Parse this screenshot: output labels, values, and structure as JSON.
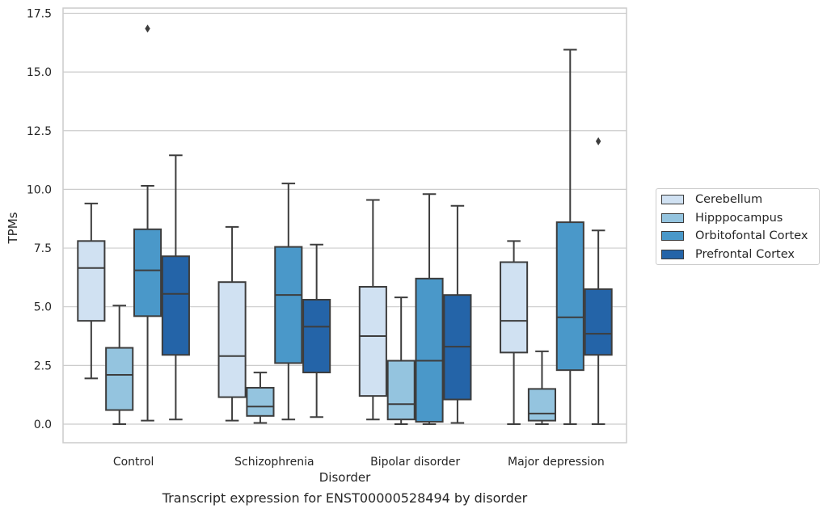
{
  "chart_data": {
    "type": "boxplot",
    "title": "Transcript expression for ENST00000528494 by disorder",
    "xlabel": "Disorder",
    "ylabel": "TPMs",
    "ylim": [
      -0.8,
      17.6
    ],
    "yticks": [
      "0.0",
      "2.5",
      "5.0",
      "7.5",
      "10.0",
      "12.5",
      "15.0",
      "17.5"
    ],
    "grid": "horizontal",
    "legend_position": "right",
    "categories": [
      "Control",
      "Schizophrenia",
      "Bipolar disorder",
      "Major depression"
    ],
    "series": [
      {
        "name": "Cerebellum",
        "color": "#d0e1f2",
        "boxes": [
          {
            "whislo": 1.95,
            "q1": 4.4,
            "med": 6.65,
            "q3": 7.8,
            "whishi": 9.4,
            "fliers": []
          },
          {
            "whislo": 0.15,
            "q1": 1.15,
            "med": 2.9,
            "q3": 6.05,
            "whishi": 8.4,
            "fliers": []
          },
          {
            "whislo": 0.2,
            "q1": 1.2,
            "med": 3.75,
            "q3": 5.85,
            "whishi": 9.55,
            "fliers": []
          },
          {
            "whislo": 0.0,
            "q1": 3.05,
            "med": 4.4,
            "q3": 6.9,
            "whishi": 7.8,
            "fliers": []
          }
        ]
      },
      {
        "name": "Hipppocampus",
        "color": "#94c4df",
        "boxes": [
          {
            "whislo": 0.0,
            "q1": 0.6,
            "med": 2.1,
            "q3": 3.25,
            "whishi": 5.05,
            "fliers": []
          },
          {
            "whislo": 0.05,
            "q1": 0.35,
            "med": 0.75,
            "q3": 1.55,
            "whishi": 2.2,
            "fliers": []
          },
          {
            "whislo": 0.0,
            "q1": 0.2,
            "med": 0.85,
            "q3": 2.7,
            "whishi": 5.4,
            "fliers": []
          },
          {
            "whislo": 0.0,
            "q1": 0.15,
            "med": 0.45,
            "q3": 1.5,
            "whishi": 3.1,
            "fliers": []
          }
        ]
      },
      {
        "name": "Orbitofontal Cortex",
        "color": "#4a98c9",
        "boxes": [
          {
            "whislo": 0.15,
            "q1": 4.6,
            "med": 6.55,
            "q3": 8.3,
            "whishi": 10.15,
            "fliers": [
              16.85
            ]
          },
          {
            "whislo": 0.2,
            "q1": 2.6,
            "med": 5.5,
            "q3": 7.55,
            "whishi": 10.25,
            "fliers": []
          },
          {
            "whislo": 0.0,
            "q1": 0.1,
            "med": 2.7,
            "q3": 6.2,
            "whishi": 9.8,
            "fliers": []
          },
          {
            "whislo": 0.0,
            "q1": 2.3,
            "med": 4.55,
            "q3": 8.6,
            "whishi": 15.95,
            "fliers": []
          }
        ]
      },
      {
        "name": "Prefrontal Cortex",
        "color": "#2464a8",
        "boxes": [
          {
            "whislo": 0.2,
            "q1": 2.95,
            "med": 5.55,
            "q3": 7.15,
            "whishi": 11.45,
            "fliers": []
          },
          {
            "whislo": 0.3,
            "q1": 2.2,
            "med": 4.15,
            "q3": 5.3,
            "whishi": 7.65,
            "fliers": []
          },
          {
            "whislo": 0.05,
            "q1": 1.05,
            "med": 3.3,
            "q3": 5.5,
            "whishi": 9.3,
            "fliers": []
          },
          {
            "whislo": 0.0,
            "q1": 2.95,
            "med": 3.85,
            "q3": 5.75,
            "whishi": 8.25,
            "fliers": [
              12.05
            ]
          }
        ]
      }
    ]
  }
}
